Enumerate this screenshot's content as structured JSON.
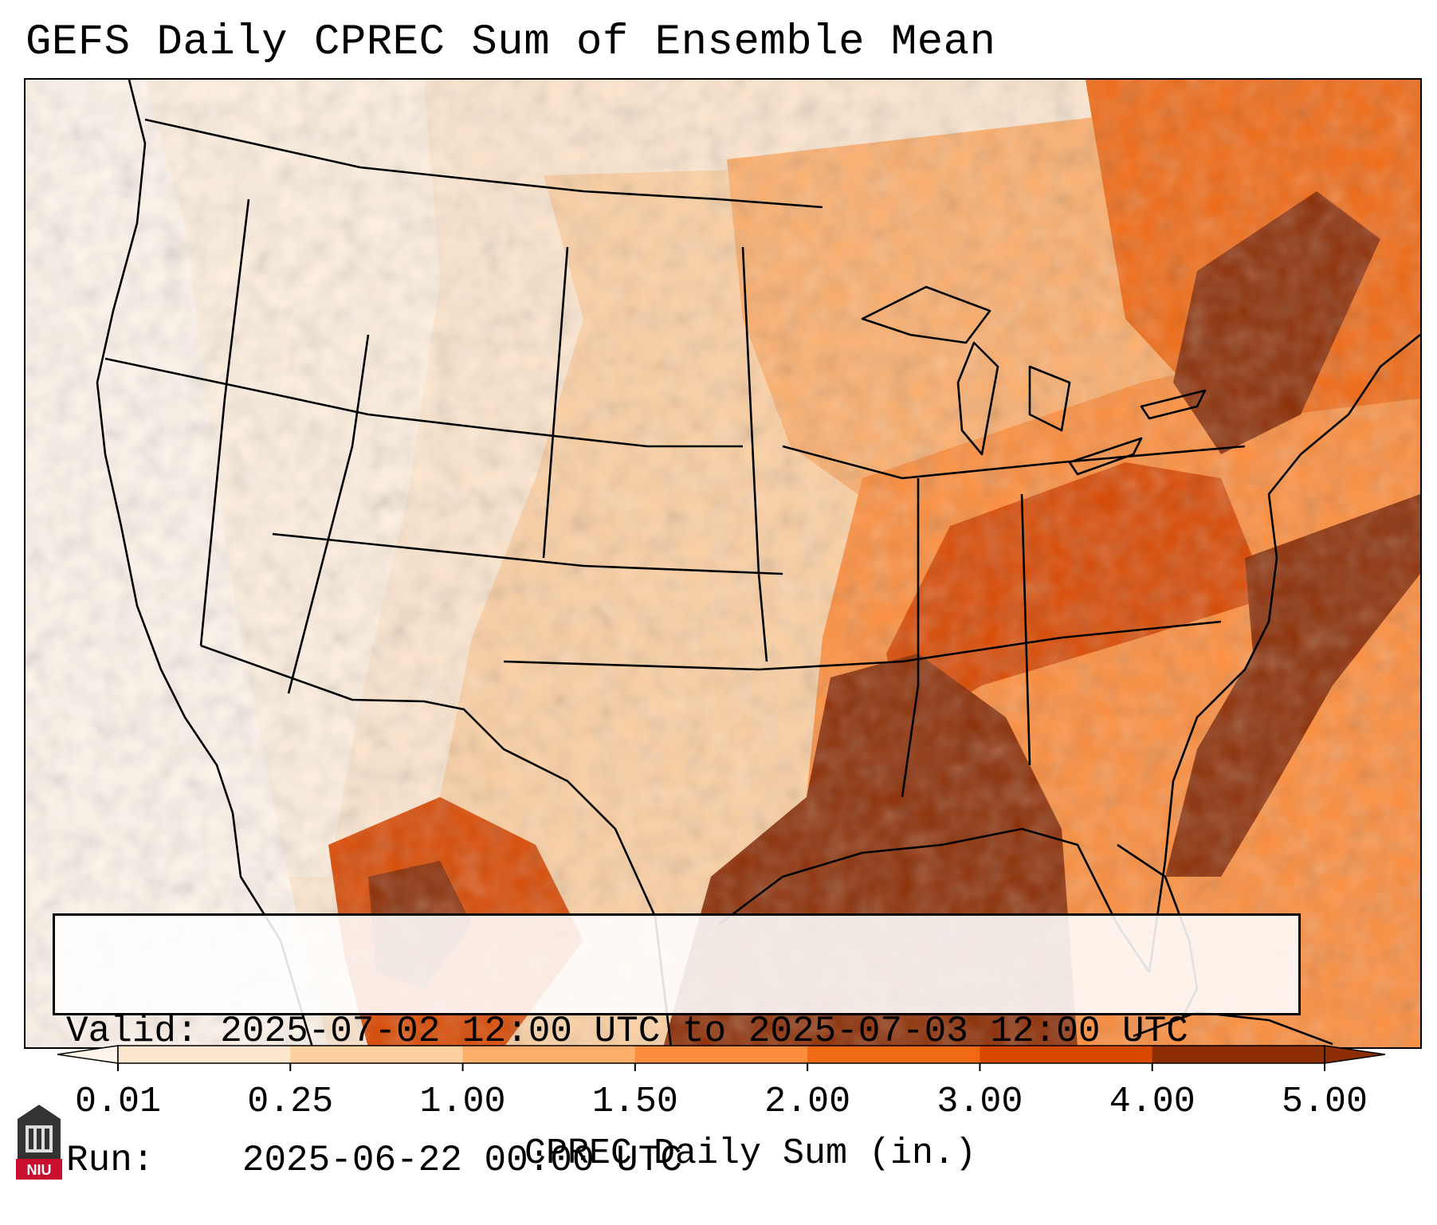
{
  "title": "GEFS Daily CPREC Sum of Ensemble Mean",
  "info": {
    "valid_label": "Valid:",
    "valid_value": "2025-07-02 12:00 UTC to 2025-07-03 12:00 UTC",
    "run_label": "Run:",
    "run_value": "2025-06-22 00:00 UTC"
  },
  "colorbar": {
    "title": "CPREC Daily Sum (in.)",
    "ticks": [
      "0.01",
      "0.25",
      "1.00",
      "1.50",
      "2.00",
      "3.00",
      "4.00",
      "5.00"
    ],
    "colors": [
      "#fff5eb",
      "#fee6ce",
      "#fdd0a2",
      "#fdae6b",
      "#fd8d3c",
      "#f16913",
      "#d94801",
      "#8c2d04"
    ]
  },
  "logo": {
    "text": "NIU",
    "color": "#c8102e"
  }
}
